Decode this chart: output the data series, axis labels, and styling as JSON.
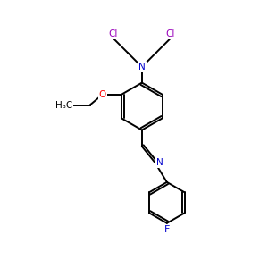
{
  "background_color": "#ffffff",
  "figsize": [
    3.0,
    3.0
  ],
  "dpi": 100,
  "atom_colors": {
    "C": "#000000",
    "N": "#0000cc",
    "O": "#ff0000",
    "F": "#0000cc",
    "Cl": "#9900bb",
    "H": "#000000"
  },
  "bond_color": "#000000",
  "bond_width": 1.4,
  "font_size": 7.5,
  "xlim": [
    0,
    10
  ],
  "ylim": [
    0,
    10
  ]
}
